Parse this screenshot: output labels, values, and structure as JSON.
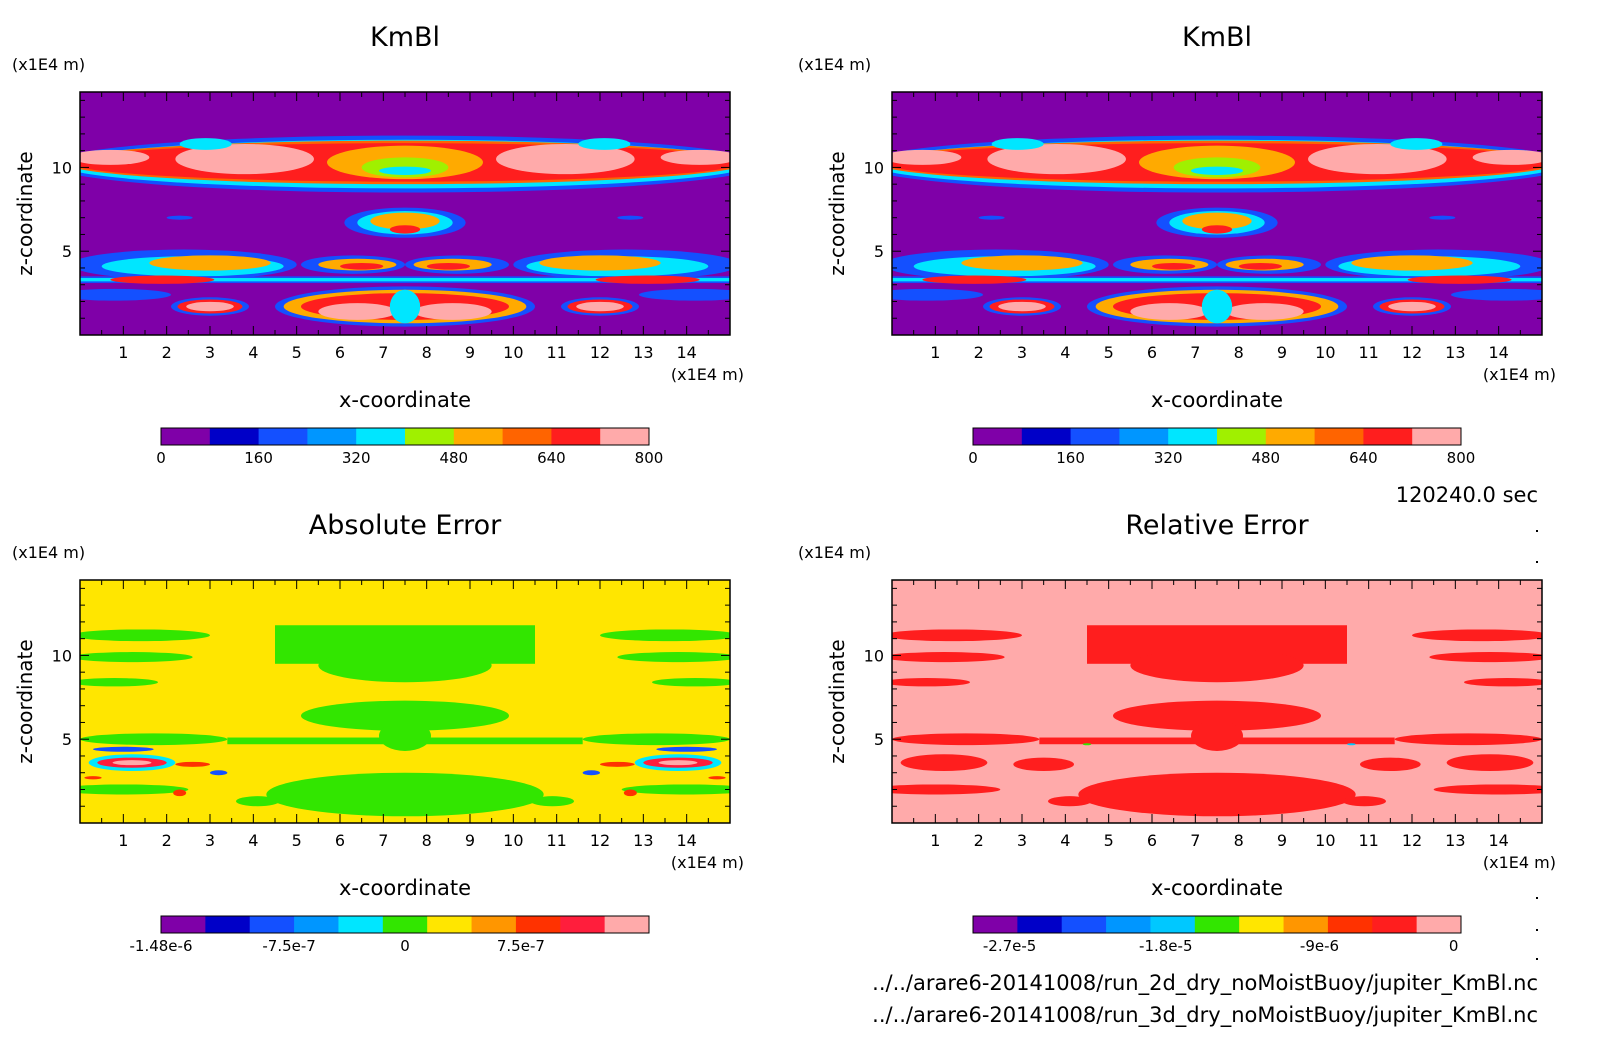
{
  "meta": {
    "time_label": "120240.0 sec",
    "file_paths": [
      "../../arare6-20141008/run_2d_dry_noMoistBuoy/jupiter_KmBl.nc",
      "../../arare6-20141008/run_3d_dry_noMoistBuoy/jupiter_KmBl.nc"
    ]
  },
  "chart_data": [
    {
      "id": "panel-1",
      "type": "heatmap",
      "title": "KmBl",
      "xlabel": "x-coordinate",
      "ylabel": "z-coordinate",
      "x_unit": "(x1E4 m)",
      "y_unit": "(x1E4 m)",
      "xlim": [
        0,
        15
      ],
      "ylim": [
        0,
        14.5
      ],
      "x_ticks": [
        "1",
        "2",
        "3",
        "4",
        "5",
        "6",
        "7",
        "8",
        "9",
        "10",
        "11",
        "12",
        "13",
        "14"
      ],
      "y_ticks": [
        "5",
        "10"
      ],
      "field": "km",
      "colorbar": {
        "levels": [
          "0",
          "160",
          "320",
          "480",
          "640",
          "800"
        ],
        "colors": [
          "#7f00a8",
          "#0000c8",
          "#1450ff",
          "#0096ff",
          "#00e6ff",
          "#a0f000",
          "#ffaa00",
          "#ff6400",
          "#ff1e1e",
          "#ffaaaa"
        ]
      }
    },
    {
      "id": "panel-2",
      "type": "heatmap",
      "title": "KmBl",
      "xlabel": "x-coordinate",
      "ylabel": "z-coordinate",
      "x_unit": "(x1E4 m)",
      "y_unit": "(x1E4 m)",
      "xlim": [
        0,
        15
      ],
      "ylim": [
        0,
        14.5
      ],
      "x_ticks": [
        "1",
        "2",
        "3",
        "4",
        "5",
        "6",
        "7",
        "8",
        "9",
        "10",
        "11",
        "12",
        "13",
        "14"
      ],
      "y_ticks": [
        "5",
        "10"
      ],
      "field": "km",
      "colorbar": {
        "levels": [
          "0",
          "160",
          "320",
          "480",
          "640",
          "800"
        ],
        "colors": [
          "#7f00a8",
          "#0000c8",
          "#1450ff",
          "#0096ff",
          "#00e6ff",
          "#a0f000",
          "#ffaa00",
          "#ff6400",
          "#ff1e1e",
          "#ffaaaa"
        ]
      }
    },
    {
      "id": "panel-3",
      "type": "heatmap",
      "title": "Absolute Error",
      "xlabel": "x-coordinate",
      "ylabel": "z-coordinate",
      "x_unit": "(x1E4 m)",
      "y_unit": "(x1E4 m)",
      "xlim": [
        0,
        15
      ],
      "ylim": [
        0,
        14.5
      ],
      "x_ticks": [
        "1",
        "2",
        "3",
        "4",
        "5",
        "6",
        "7",
        "8",
        "9",
        "10",
        "11",
        "12",
        "13",
        "14"
      ],
      "y_ticks": [
        "5",
        "10"
      ],
      "field": "abs",
      "colorbar": {
        "levels": [
          "-1.48e-6",
          "-7.5e-7",
          "0",
          "7.5e-7"
        ],
        "colors": [
          "#7f00a8",
          "#0000c8",
          "#1450ff",
          "#0096ff",
          "#00e6ff",
          "#32e600",
          "#ffe600",
          "#ff9600",
          "#ff3200",
          "#ff1e3c",
          "#ffaaaa"
        ]
      }
    },
    {
      "id": "panel-4",
      "type": "heatmap",
      "title": "Relative Error",
      "xlabel": "x-coordinate",
      "ylabel": "z-coordinate",
      "x_unit": "(x1E4 m)",
      "y_unit": "(x1E4 m)",
      "xlim": [
        0,
        15
      ],
      "ylim": [
        0,
        14.5
      ],
      "x_ticks": [
        "1",
        "2",
        "3",
        "4",
        "5",
        "6",
        "7",
        "8",
        "9",
        "10",
        "11",
        "12",
        "13",
        "14"
      ],
      "y_ticks": [
        "5",
        "10"
      ],
      "field": "rel",
      "colorbar": {
        "levels": [
          "-2.7e-5",
          "-1.8e-5",
          "-9e-6",
          "0"
        ],
        "colors": [
          "#7f00a8",
          "#0000c8",
          "#1450ff",
          "#0096ff",
          "#00c8ff",
          "#32e600",
          "#ffe600",
          "#ff9600",
          "#ff3200",
          "#ff1e1e",
          "#ffaaaa"
        ]
      }
    }
  ]
}
